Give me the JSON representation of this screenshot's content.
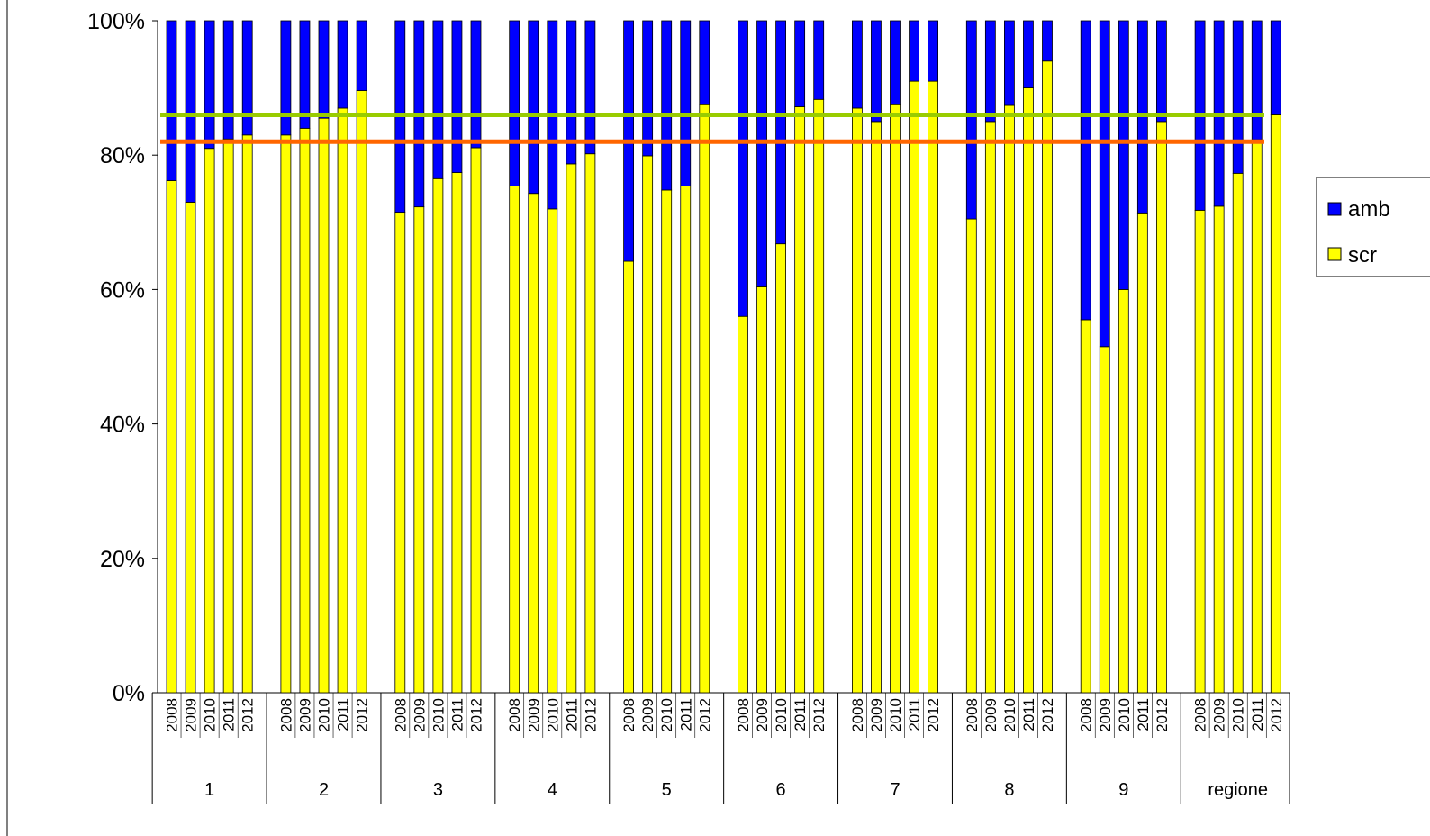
{
  "chart_data": {
    "type": "bar",
    "stacked": true,
    "normalized_percent": true,
    "title": "",
    "xlabel": "",
    "ylabel": "",
    "ylim": [
      0,
      100
    ],
    "y_ticks": [
      "0%",
      "20%",
      "40%",
      "60%",
      "80%",
      "100%"
    ],
    "grid": false,
    "legend_position": "right",
    "groups": [
      "1",
      "2",
      "3",
      "4",
      "5",
      "6",
      "7",
      "8",
      "9",
      "regione"
    ],
    "years": [
      "2008",
      "2009",
      "2010",
      "2011",
      "2012"
    ],
    "series": [
      {
        "name": "scr",
        "color": "#ffff00",
        "values": [
          [
            76.2,
            73.0,
            81.0,
            82.4,
            83.0
          ],
          [
            83.0,
            84.0,
            85.5,
            87.0,
            89.6
          ],
          [
            71.5,
            72.3,
            76.5,
            77.4,
            81.1
          ],
          [
            75.4,
            74.3,
            72.0,
            78.7,
            80.2
          ],
          [
            64.2,
            79.9,
            74.8,
            75.4,
            87.5
          ],
          [
            56.0,
            60.4,
            66.8,
            87.2,
            88.3
          ],
          [
            87.0,
            85.0,
            87.5,
            91.0,
            91.0
          ],
          [
            70.5,
            85.0,
            87.4,
            90.0,
            94.0
          ],
          [
            55.5,
            51.5,
            60.0,
            71.4,
            85.0
          ],
          [
            71.8,
            72.4,
            77.3,
            82.3,
            86.0
          ]
        ]
      },
      {
        "name": "amb",
        "color": "#0000ff",
        "values": [
          [
            23.8,
            27.0,
            19.0,
            17.6,
            17.0
          ],
          [
            17.0,
            16.0,
            14.5,
            13.0,
            10.4
          ],
          [
            28.5,
            27.7,
            23.5,
            22.6,
            18.9
          ],
          [
            24.6,
            25.7,
            28.0,
            21.3,
            19.8
          ],
          [
            35.8,
            20.1,
            25.2,
            24.6,
            12.5
          ],
          [
            44.0,
            39.6,
            33.2,
            12.8,
            11.7
          ],
          [
            13.0,
            15.0,
            12.5,
            9.0,
            9.0
          ],
          [
            29.5,
            15.0,
            12.6,
            10.0,
            6.0
          ],
          [
            44.5,
            48.5,
            40.0,
            28.6,
            15.0
          ],
          [
            28.2,
            27.6,
            22.7,
            17.7,
            14.0
          ]
        ]
      }
    ],
    "reference_lines": [
      {
        "value": 86,
        "color": "#99cc00"
      },
      {
        "value": 82,
        "color": "#ff6600"
      }
    ]
  }
}
